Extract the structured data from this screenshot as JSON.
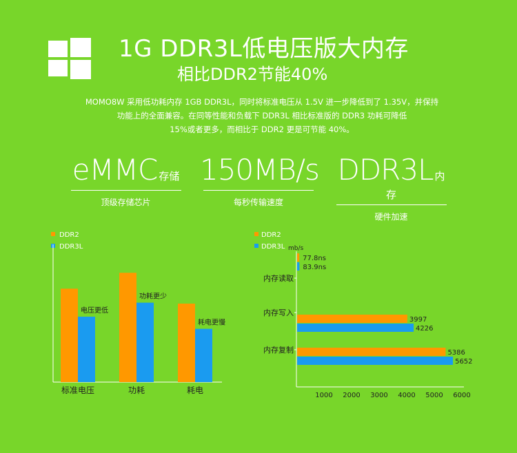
{
  "header": {
    "logo_icon": "windows-logo-icon",
    "title": "1G DDR3L低电压版大内存",
    "subtitle": "相比DDR2节能40%"
  },
  "description": [
    "MOMO8W 采用低功耗内存 1GB DDR3L，同时将标准电压从 1.5V 进一步降低到了 1.35V，并保持",
    "功能上的全面兼容。在同等性能和负载下 DDR3L 相比标准版的 DDR3 功耗可降低",
    "15%或者更多，而相比于 DDR2 更是可节能 40%。"
  ],
  "features": [
    {
      "big": "eMMC",
      "small": "存储",
      "sub": "顶级存储芯片"
    },
    {
      "big": "150MB/s",
      "small": "",
      "sub": "每秒传输速度"
    },
    {
      "big": "DDR3L",
      "small": "内存",
      "sub": "硬件加速"
    }
  ],
  "colors": {
    "background": "#78d62a",
    "ddr2": "#ff9800",
    "ddr3l": "#1a9bf0",
    "text": "#ffffff"
  },
  "chart_data": [
    {
      "type": "bar",
      "orientation": "vertical",
      "categories": [
        "标准电压",
        "功耗",
        "耗电"
      ],
      "series": [
        {
          "name": "DDR2",
          "values": [
            100,
            117,
            84
          ]
        },
        {
          "name": "DDR3L",
          "values": [
            70,
            85,
            57
          ]
        }
      ],
      "annotations": [
        "电压更低",
        "功耗更少",
        "耗电更慢"
      ],
      "ylim": [
        0,
        140
      ],
      "legend": "top-left",
      "grid": false
    },
    {
      "type": "bar",
      "orientation": "horizontal",
      "categories": [
        "内存读取",
        "内存写入",
        "内存复制"
      ],
      "series": [
        {
          "name": "DDR2",
          "values": [
            77.8,
            3997,
            5386
          ]
        },
        {
          "name": "DDR3L",
          "values": [
            83.9,
            4226,
            5652
          ]
        }
      ],
      "data_labels": [
        [
          "77.8ns",
          "3997",
          "5386"
        ],
        [
          "83.9ns",
          "4226",
          "5652"
        ]
      ],
      "unit_label": "mb/s",
      "x_ticks": [
        "1000",
        "2000",
        "3000",
        "4000",
        "5000",
        "6000"
      ],
      "xlim": [
        0,
        6000
      ],
      "legend": "top-left",
      "grid": false
    }
  ]
}
